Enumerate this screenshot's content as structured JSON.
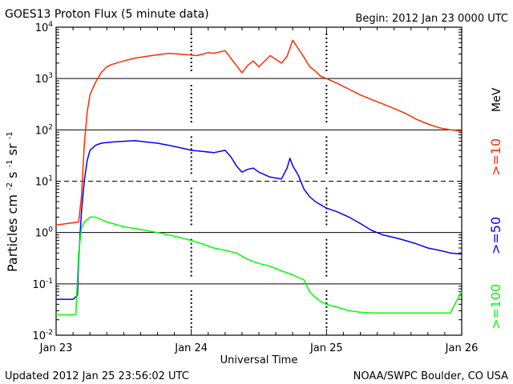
{
  "header": {
    "title": "GOES13 Proton Flux (5 minute data)",
    "begin": "Begin: 2012 Jan 23 0000 UTC"
  },
  "footer": {
    "updated": "Updated 2012 Jan 25 23:56:02 UTC",
    "credit": "NOAA/SWPC Boulder, CO USA"
  },
  "chart_data": {
    "type": "line",
    "title": "GOES13 Proton Flux (5 minute data)",
    "xlabel": "Universal Time",
    "ylabel_base": "Particles cm",
    "ylabel_units": [
      "-2",
      "s",
      "-1",
      "sr",
      "-1"
    ],
    "yscale": "log",
    "ylim": [
      0.01,
      10000
    ],
    "xlim": [
      0,
      72
    ],
    "x_unit": "hours since 2012 Jan 23 0000 UTC",
    "x_ticks": [
      {
        "x": 0,
        "label": "Jan 23"
      },
      {
        "x": 24,
        "label": "Jan 24"
      },
      {
        "x": 48,
        "label": "Jan 25"
      },
      {
        "x": 72,
        "label": "Jan 26"
      }
    ],
    "y_ticks": [
      {
        "exp": -2,
        "value": 0.01
      },
      {
        "exp": -1,
        "value": 0.1
      },
      {
        "exp": 0,
        "value": 1
      },
      {
        "exp": 1,
        "value": 10
      },
      {
        "exp": 2,
        "value": 100
      },
      {
        "exp": 3,
        "value": 1000
      },
      {
        "exp": 4,
        "value": 10000
      }
    ],
    "threshold_lines": [
      {
        "value": 10,
        "style": "dashed"
      }
    ],
    "grid_lines": [
      0.1,
      1,
      100,
      1000
    ],
    "series": [
      {
        "name": ">=10 MeV",
        "legend": ">=10",
        "unit": "MeV",
        "color": "#ff2a00",
        "x": [
          0,
          2,
          4,
          4.5,
          5,
          5.5,
          6,
          7,
          8,
          9,
          10,
          12,
          14,
          16,
          18,
          20,
          22,
          25,
          27,
          28,
          30,
          32,
          33,
          34,
          35,
          36,
          38,
          40,
          41,
          42,
          43,
          44,
          45,
          46,
          47,
          48,
          50,
          52,
          54,
          56,
          58,
          60,
          62,
          64,
          66,
          68,
          70,
          72
        ],
        "y": [
          1.4,
          1.5,
          1.6,
          5,
          50,
          220,
          480,
          850,
          1300,
          1700,
          1900,
          2200,
          2500,
          2700,
          2900,
          3100,
          3000,
          2800,
          3200,
          3100,
          3500,
          1800,
          1300,
          1800,
          2200,
          1700,
          2800,
          2000,
          2700,
          5600,
          3800,
          2600,
          1700,
          1400,
          1100,
          1000,
          800,
          620,
          480,
          390,
          320,
          260,
          210,
          160,
          130,
          110,
          100,
          95
        ]
      },
      {
        "name": ">=50 MeV",
        "legend": ">=50",
        "unit": "",
        "color": "#0000ff",
        "x": [
          0,
          3,
          3.8,
          4,
          4.5,
          5,
          5.5,
          6,
          7,
          8,
          10,
          12,
          14,
          16,
          18,
          20,
          22,
          24,
          26,
          28,
          30,
          31,
          32,
          33,
          34,
          35,
          36,
          38,
          40,
          41,
          41.5,
          42,
          43,
          44,
          45,
          46,
          48,
          50,
          52,
          54,
          56,
          58,
          60,
          62,
          64,
          66,
          68,
          70,
          72
        ],
        "y": [
          0.05,
          0.05,
          0.06,
          0.3,
          2.5,
          10,
          25,
          40,
          50,
          55,
          58,
          60,
          62,
          58,
          55,
          50,
          45,
          40,
          38,
          36,
          40,
          30,
          20,
          15,
          17,
          18,
          15,
          12,
          11,
          18,
          28,
          20,
          13,
          7,
          5,
          4,
          3,
          2.5,
          2,
          1.5,
          1.1,
          0.9,
          0.8,
          0.7,
          0.6,
          0.5,
          0.45,
          0.4,
          0.38
        ]
      },
      {
        "name": ">=100 MeV",
        "legend": ">=100",
        "unit": "",
        "color": "#00ff00",
        "x": [
          0,
          3.5,
          4,
          4.5,
          5,
          6,
          7,
          8,
          9,
          10,
          12,
          14,
          16,
          18,
          20,
          22,
          24,
          26,
          28,
          30,
          32,
          34,
          36,
          38,
          40,
          42,
          44,
          45,
          46,
          47,
          48,
          50,
          52,
          54,
          56,
          58,
          60,
          62,
          64,
          66,
          68,
          70,
          71,
          72
        ],
        "y": [
          0.025,
          0.025,
          0.4,
          1.2,
          1.6,
          2,
          2,
          1.8,
          1.6,
          1.5,
          1.3,
          1.2,
          1.1,
          1.0,
          0.9,
          0.8,
          0.7,
          0.6,
          0.5,
          0.45,
          0.4,
          0.3,
          0.25,
          0.22,
          0.18,
          0.15,
          0.12,
          0.07,
          0.055,
          0.045,
          0.04,
          0.035,
          0.03,
          0.028,
          0.027,
          0.027,
          0.027,
          0.027,
          0.027,
          0.027,
          0.027,
          0.027,
          0.045,
          0.07
        ]
      }
    ]
  }
}
